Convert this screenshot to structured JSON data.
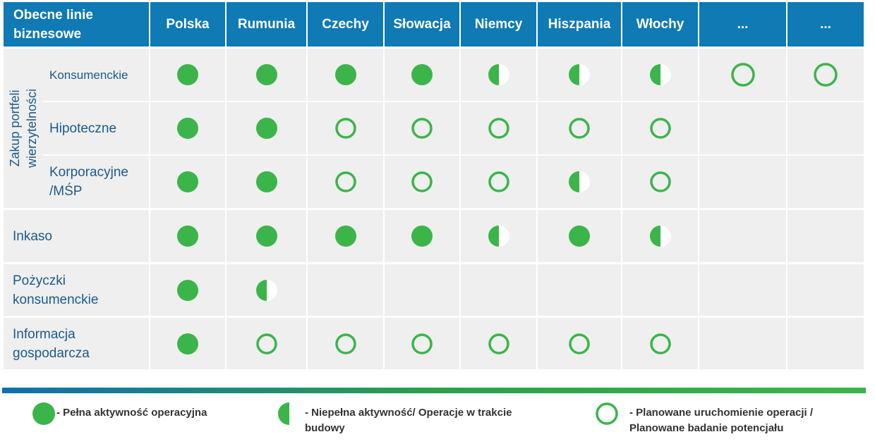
{
  "header": {
    "corner": "Obecne linie biznesowe",
    "columns": [
      "Polska",
      "Rumunia",
      "Czechy",
      "Słowacja",
      "Niemcy",
      "Hiszpania",
      "Włochy",
      "...",
      "..."
    ]
  },
  "group": "Zakup portfeli wierzytelności",
  "rows": [
    {
      "label": "Konsumenckie",
      "cells": [
        0,
        0,
        0,
        0,
        1,
        1,
        1,
        2,
        2
      ]
    },
    {
      "label": "Hipoteczne",
      "cells": [
        0,
        0,
        2,
        2,
        2,
        2,
        2,
        null,
        null
      ]
    },
    {
      "label": "Korporacyjne /MŚP",
      "cells": [
        0,
        0,
        2,
        2,
        2,
        1,
        2,
        null,
        null
      ]
    },
    {
      "label": "Inkaso",
      "cells": [
        0,
        0,
        0,
        0,
        1,
        0,
        1,
        null,
        null
      ]
    },
    {
      "label": "Pożyczki konsumenckie",
      "cells": [
        0,
        1,
        null,
        null,
        null,
        null,
        null,
        null,
        null
      ]
    },
    {
      "label": "Informacja gospodarcza",
      "cells": [
        0,
        2,
        2,
        2,
        2,
        2,
        2,
        null,
        null
      ]
    }
  ],
  "legend": [
    "- Pełna aktywność operacyjna",
    "- Niepełna aktywność/ Operacje w trakcie budowy",
    "- Planowane uruchomienie operacji / Planowane badanie potencjału"
  ]
}
